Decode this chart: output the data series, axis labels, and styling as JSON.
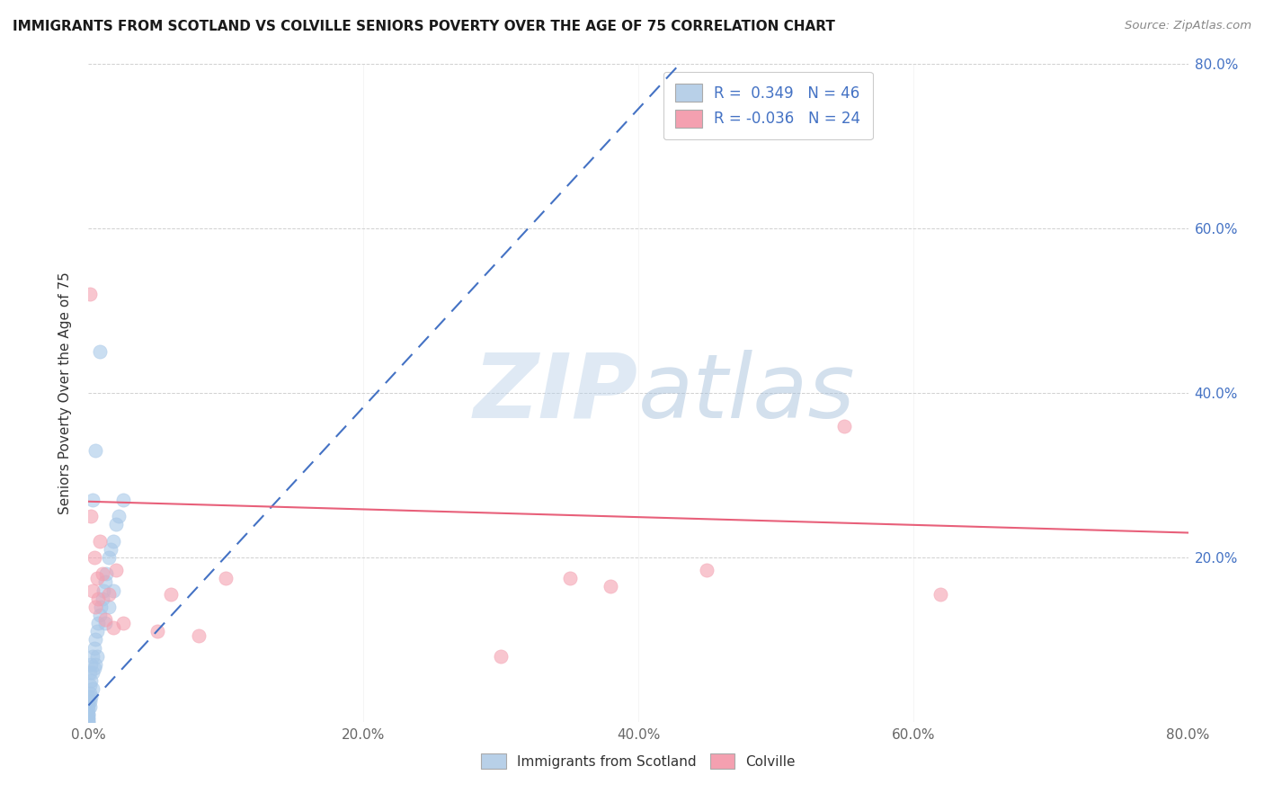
{
  "title": "IMMIGRANTS FROM SCOTLAND VS COLVILLE SENIORS POVERTY OVER THE AGE OF 75 CORRELATION CHART",
  "source_text": "Source: ZipAtlas.com",
  "ylabel": "Seniors Poverty Over the Age of 75",
  "xlim": [
    0.0,
    0.8
  ],
  "ylim": [
    0.0,
    0.8
  ],
  "xtick_vals": [
    0.0,
    0.2,
    0.4,
    0.6,
    0.8
  ],
  "xtick_labels": [
    "0.0%",
    "20.0%",
    "40.0%",
    "60.0%",
    "80.0%"
  ],
  "ytick_vals": [
    0.0,
    0.2,
    0.4,
    0.6,
    0.8
  ],
  "ytick_labels_left": [
    "",
    "",
    "",
    "",
    ""
  ],
  "ytick_labels_right": [
    "",
    "20.0%",
    "40.0%",
    "60.0%",
    "80.0%"
  ],
  "color_scotland": "#A8C8E8",
  "color_colville": "#F4A0B0",
  "trendline_scotland_color": "#4472C4",
  "trendline_colville_color": "#E8607A",
  "background_color": "#FFFFFF",
  "grid_color": "#D0D0D0",
  "watermark_zip_color": "#C8DCF0",
  "watermark_atlas_color": "#B0C8E0",
  "scatter_scotland_x": [
    0.0,
    0.0,
    0.0,
    0.0,
    0.0,
    0.0,
    0.0,
    0.0,
    0.0,
    0.0,
    0.001,
    0.001,
    0.001,
    0.001,
    0.001,
    0.002,
    0.002,
    0.002,
    0.003,
    0.003,
    0.003,
    0.004,
    0.004,
    0.005,
    0.005,
    0.006,
    0.006,
    0.007,
    0.008,
    0.009,
    0.01,
    0.011,
    0.012,
    0.013,
    0.015,
    0.016,
    0.018,
    0.02,
    0.022,
    0.025,
    0.005,
    0.008,
    0.012,
    0.015,
    0.018,
    0.003
  ],
  "scatter_scotland_y": [
    0.03,
    0.025,
    0.02,
    0.015,
    0.01,
    0.008,
    0.005,
    0.003,
    0.0,
    0.0,
    0.06,
    0.045,
    0.035,
    0.025,
    0.018,
    0.07,
    0.05,
    0.03,
    0.08,
    0.06,
    0.04,
    0.09,
    0.065,
    0.1,
    0.07,
    0.11,
    0.08,
    0.12,
    0.13,
    0.14,
    0.15,
    0.16,
    0.17,
    0.18,
    0.2,
    0.21,
    0.22,
    0.24,
    0.25,
    0.27,
    0.33,
    0.45,
    0.12,
    0.14,
    0.16,
    0.27
  ],
  "scatter_colville_x": [
    0.001,
    0.002,
    0.003,
    0.004,
    0.005,
    0.006,
    0.007,
    0.008,
    0.01,
    0.012,
    0.015,
    0.018,
    0.02,
    0.025,
    0.05,
    0.06,
    0.08,
    0.1,
    0.3,
    0.38,
    0.55,
    0.62,
    0.35,
    0.45
  ],
  "scatter_colville_y": [
    0.52,
    0.25,
    0.16,
    0.2,
    0.14,
    0.175,
    0.15,
    0.22,
    0.18,
    0.125,
    0.155,
    0.115,
    0.185,
    0.12,
    0.11,
    0.155,
    0.105,
    0.175,
    0.08,
    0.165,
    0.36,
    0.155,
    0.175,
    0.185
  ]
}
